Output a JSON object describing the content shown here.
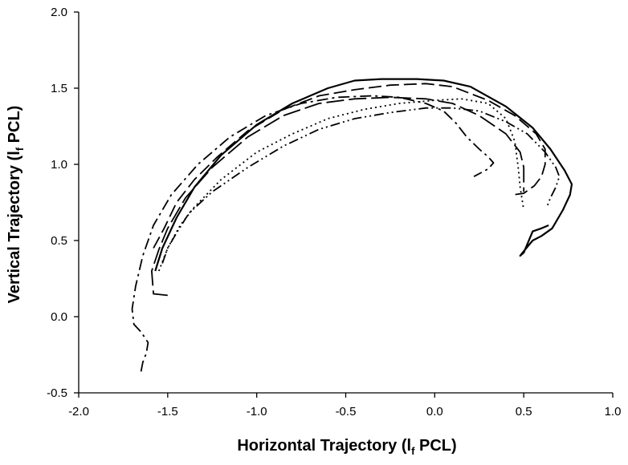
{
  "chart_data": {
    "type": "line",
    "title": "",
    "xlabel": {
      "main": "Horizontal Trajectory (l",
      "sub": "f",
      "rest": " PCL)"
    },
    "ylabel": {
      "main": "Vertical Trajectory (l",
      "sub": "f",
      "rest": " PCL)"
    },
    "xlim": [
      -2.0,
      1.0
    ],
    "ylim": [
      -0.5,
      2.0
    ],
    "x_ticks": [
      -2.0,
      -1.5,
      -1.0,
      -0.5,
      0.0,
      0.5,
      1.0
    ],
    "y_ticks": [
      -0.5,
      0.0,
      0.5,
      1.0,
      1.5,
      2.0
    ],
    "x_tick_labels": [
      "-2.0",
      "-1.5",
      "-1.0",
      "-0.5",
      "0.0",
      "0.5",
      "1.0"
    ],
    "y_tick_labels": [
      "-0.5",
      "0.0",
      "0.5",
      "1.0",
      "1.5",
      "2.0"
    ],
    "grid": false,
    "series": [
      {
        "dash": "solid",
        "points": [
          [
            -1.57,
            0.3
          ],
          [
            -1.53,
            0.45
          ],
          [
            -1.45,
            0.65
          ],
          [
            -1.35,
            0.85
          ],
          [
            -1.2,
            1.06
          ],
          [
            -1.0,
            1.26
          ],
          [
            -0.8,
            1.4
          ],
          [
            -0.6,
            1.5
          ],
          [
            -0.45,
            1.55
          ],
          [
            -0.3,
            1.56
          ],
          [
            -0.1,
            1.56
          ],
          [
            0.05,
            1.55
          ],
          [
            0.2,
            1.51
          ],
          [
            0.4,
            1.38
          ],
          [
            0.55,
            1.24
          ],
          [
            0.65,
            1.1
          ],
          [
            0.73,
            0.96
          ],
          [
            0.77,
            0.87
          ],
          [
            0.76,
            0.8
          ],
          [
            0.72,
            0.7
          ],
          [
            0.66,
            0.58
          ],
          [
            0.6,
            0.53
          ],
          [
            0.55,
            0.5
          ],
          [
            0.5,
            0.43
          ],
          [
            0.48,
            0.4
          ],
          [
            0.5,
            0.42
          ],
          [
            0.55,
            0.56
          ],
          [
            0.6,
            0.58
          ],
          [
            0.64,
            0.6
          ]
        ]
      },
      {
        "dash": "long-dash",
        "points": [
          [
            -1.58,
            0.45
          ],
          [
            -1.52,
            0.58
          ],
          [
            -1.45,
            0.75
          ],
          [
            -1.35,
            0.9
          ],
          [
            -1.22,
            1.05
          ],
          [
            -1.05,
            1.22
          ],
          [
            -0.85,
            1.36
          ],
          [
            -0.65,
            1.45
          ],
          [
            -0.45,
            1.49
          ],
          [
            -0.25,
            1.52
          ],
          [
            -0.05,
            1.53
          ],
          [
            0.1,
            1.51
          ],
          [
            0.3,
            1.42
          ],
          [
            0.45,
            1.32
          ],
          [
            0.57,
            1.2
          ],
          [
            0.62,
            1.1
          ],
          [
            0.62,
            1.0
          ],
          [
            0.6,
            0.92
          ],
          [
            0.56,
            0.86
          ],
          [
            0.5,
            0.81
          ],
          [
            0.44,
            0.8
          ]
        ]
      },
      {
        "dash": "dash",
        "points": [
          [
            -1.5,
            0.14
          ],
          [
            -1.58,
            0.15
          ],
          [
            -1.59,
            0.3
          ],
          [
            -1.55,
            0.44
          ],
          [
            -1.5,
            0.58
          ],
          [
            -1.4,
            0.78
          ],
          [
            -1.25,
            0.98
          ],
          [
            -1.05,
            1.18
          ],
          [
            -0.85,
            1.32
          ],
          [
            -0.65,
            1.4
          ],
          [
            -0.45,
            1.43
          ],
          [
            -0.25,
            1.44
          ],
          [
            -0.05,
            1.43
          ],
          [
            0.1,
            1.4
          ],
          [
            0.25,
            1.32
          ],
          [
            0.4,
            1.2
          ],
          [
            0.48,
            1.08
          ],
          [
            0.5,
            0.98
          ],
          [
            0.5,
            0.88
          ],
          [
            0.5,
            0.82
          ]
        ]
      },
      {
        "dash": "dot",
        "points": [
          [
            -1.55,
            0.3
          ],
          [
            -1.5,
            0.45
          ],
          [
            -1.43,
            0.6
          ],
          [
            -1.35,
            0.72
          ],
          [
            -1.2,
            0.9
          ],
          [
            -1.0,
            1.08
          ],
          [
            -0.8,
            1.2
          ],
          [
            -0.6,
            1.3
          ],
          [
            -0.4,
            1.36
          ],
          [
            -0.2,
            1.4
          ],
          [
            0.0,
            1.42
          ],
          [
            0.15,
            1.43
          ],
          [
            0.3,
            1.4
          ],
          [
            0.4,
            1.3
          ],
          [
            0.45,
            1.15
          ],
          [
            0.47,
            0.97
          ],
          [
            0.48,
            0.85
          ],
          [
            0.5,
            0.7
          ]
        ]
      },
      {
        "dash": "dash-dot",
        "points": [
          [
            -1.65,
            -0.36
          ],
          [
            -1.64,
            -0.3
          ],
          [
            -1.62,
            -0.24
          ],
          [
            -1.61,
            -0.17
          ],
          [
            -1.65,
            -0.1
          ],
          [
            -1.69,
            -0.05
          ],
          [
            -1.7,
            0.05
          ],
          [
            -1.68,
            0.2
          ],
          [
            -1.64,
            0.4
          ],
          [
            -1.58,
            0.6
          ],
          [
            -1.48,
            0.8
          ],
          [
            -1.33,
            1.0
          ],
          [
            -1.15,
            1.18
          ],
          [
            -0.95,
            1.32
          ],
          [
            -0.75,
            1.4
          ],
          [
            -0.55,
            1.44
          ],
          [
            -0.35,
            1.45
          ],
          [
            -0.2,
            1.44
          ],
          [
            -0.05,
            1.4
          ],
          [
            0.05,
            1.35
          ],
          [
            0.12,
            1.27
          ],
          [
            0.18,
            1.18
          ],
          [
            0.25,
            1.1
          ],
          [
            0.3,
            1.05
          ],
          [
            0.33,
            1.01
          ],
          [
            0.3,
            0.97
          ],
          [
            0.22,
            0.92
          ]
        ]
      },
      {
        "dash": "dash-dot-dot",
        "points": [
          [
            -1.53,
            0.35
          ],
          [
            -1.5,
            0.45
          ],
          [
            -1.45,
            0.55
          ],
          [
            -1.38,
            0.68
          ],
          [
            -1.25,
            0.82
          ],
          [
            -1.05,
            0.98
          ],
          [
            -0.85,
            1.12
          ],
          [
            -0.65,
            1.23
          ],
          [
            -0.45,
            1.3
          ],
          [
            -0.25,
            1.34
          ],
          [
            -0.05,
            1.37
          ],
          [
            0.1,
            1.37
          ],
          [
            0.25,
            1.35
          ],
          [
            0.4,
            1.28
          ],
          [
            0.52,
            1.2
          ],
          [
            0.62,
            1.08
          ],
          [
            0.68,
            0.98
          ],
          [
            0.7,
            0.92
          ],
          [
            0.68,
            0.85
          ],
          [
            0.65,
            0.78
          ],
          [
            0.63,
            0.72
          ]
        ]
      }
    ]
  }
}
